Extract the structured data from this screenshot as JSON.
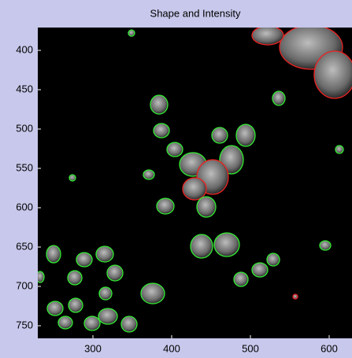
{
  "chart_data": {
    "type": "image",
    "title": "Shape and Intensity",
    "xlim": [
      230,
      629
    ],
    "ylim": [
      371,
      766
    ],
    "y_reversed": true,
    "xticks": [
      300,
      400,
      500,
      600
    ],
    "yticks": [
      400,
      450,
      500,
      550,
      600,
      650,
      700,
      750
    ]
  }
}
